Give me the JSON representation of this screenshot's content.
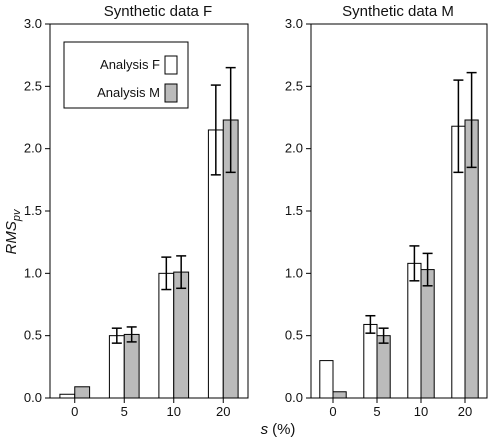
{
  "chart_data": [
    {
      "type": "bar",
      "title": "Synthetic data F",
      "categories": [
        "0",
        "5",
        "10",
        "20"
      ],
      "ylim": [
        0,
        3.0
      ],
      "yticks": [
        "0.0",
        "0.5",
        "1.0",
        "1.5",
        "2.0",
        "2.5",
        "3.0"
      ],
      "ylabel": "RMS",
      "ylabel_sub": "pv",
      "xlabel": "s",
      "xlabel_unit": "(%)",
      "legend": "top-left",
      "series": [
        {
          "name": "Analysis F",
          "color": "#ffffff",
          "values": [
            0.03,
            0.5,
            1.0,
            2.15
          ],
          "err": [
            0,
            0.06,
            0.13,
            0.36
          ]
        },
        {
          "name": "Analysis M",
          "color": "#bbbbbb",
          "values": [
            0.09,
            0.51,
            1.01,
            2.23
          ],
          "err": [
            0,
            0.06,
            0.13,
            0.42
          ]
        }
      ]
    },
    {
      "type": "bar",
      "title": "Synthetic data M",
      "categories": [
        "0",
        "5",
        "10",
        "20"
      ],
      "ylim": [
        0,
        3.0
      ],
      "yticks": [
        "0.0",
        "0.5",
        "1.0",
        "1.5",
        "2.0",
        "2.5",
        "3.0"
      ],
      "series": [
        {
          "name": "Analysis F",
          "color": "#ffffff",
          "values": [
            0.3,
            0.59,
            1.08,
            2.18
          ],
          "err": [
            0,
            0.07,
            0.14,
            0.37
          ]
        },
        {
          "name": "Analysis M",
          "color": "#bbbbbb",
          "values": [
            0.05,
            0.5,
            1.03,
            2.23
          ],
          "err": [
            0,
            0.06,
            0.13,
            0.38
          ]
        }
      ]
    }
  ]
}
